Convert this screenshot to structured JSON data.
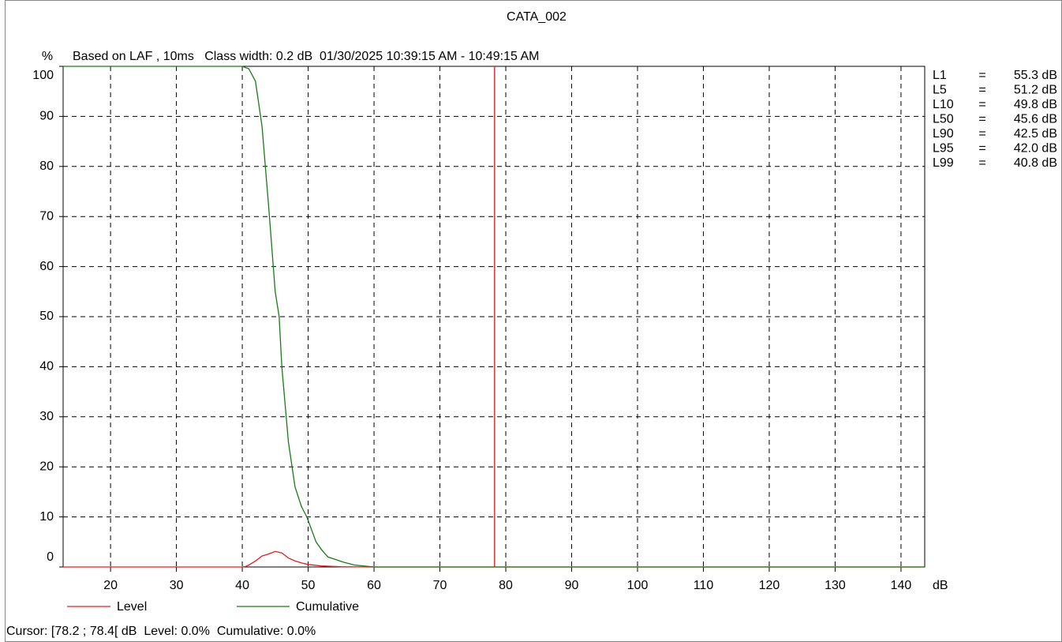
{
  "chart_data": {
    "type": "line",
    "title": "CATA_002",
    "y_label": "%",
    "subtitle": "Based on LAF , 10ms   Class width: 0.2 dB  01/30/2025 10:39:15 AM - 10:49:15 AM",
    "x_unit": "dB",
    "xlim": [
      12.8,
      143.6
    ],
    "xticks": [
      20,
      30,
      40,
      50,
      60,
      70,
      80,
      90,
      100,
      110,
      120,
      130,
      140
    ],
    "ylim": [
      0,
      100
    ],
    "yticks": [
      0,
      10,
      20,
      30,
      40,
      50,
      60,
      70,
      80,
      90,
      100
    ],
    "grid": true,
    "cursor_x": 78.3,
    "cursor_color": "#e03030",
    "series": [
      {
        "name": "Level",
        "color": "#e02020",
        "x": [
          12.8,
          40,
          40.5,
          41,
          42,
          43,
          44,
          45,
          46,
          47,
          48,
          49,
          50,
          52,
          55,
          60,
          143.6
        ],
        "values": [
          0,
          0,
          0.1,
          0.4,
          1.2,
          2.2,
          2.6,
          3.1,
          2.8,
          1.8,
          1.2,
          0.8,
          0.5,
          0.2,
          0.05,
          0,
          0
        ]
      },
      {
        "name": "Cumulative",
        "color": "#1a7a1a",
        "x": [
          12.8,
          40,
          41,
          42,
          43,
          44,
          45,
          45.6,
          46,
          47,
          48,
          49,
          49.8,
          51.2,
          52,
          53,
          55.3,
          57,
          60,
          143.6
        ],
        "values": [
          100,
          100,
          99.5,
          97,
          88,
          72,
          55,
          50,
          40,
          25,
          16,
          12,
          10,
          5,
          3.5,
          2,
          1,
          0.4,
          0,
          0
        ]
      }
    ],
    "statistics": [
      {
        "label": "L1",
        "sign": "=",
        "value": "55.3 dB"
      },
      {
        "label": "L5",
        "sign": "=",
        "value": "51.2 dB"
      },
      {
        "label": "L10",
        "sign": "=",
        "value": "49.8 dB"
      },
      {
        "label": "L50",
        "sign": "=",
        "value": "45.6 dB"
      },
      {
        "label": "L90",
        "sign": "=",
        "value": "42.5 dB"
      },
      {
        "label": "L95",
        "sign": "=",
        "value": "42.0 dB"
      },
      {
        "label": "L99",
        "sign": "=",
        "value": "40.8 dB"
      }
    ],
    "status": "Cursor: [78.2 ; 78.4[ dB  Level: 0.0%  Cumulative: 0.0%"
  }
}
